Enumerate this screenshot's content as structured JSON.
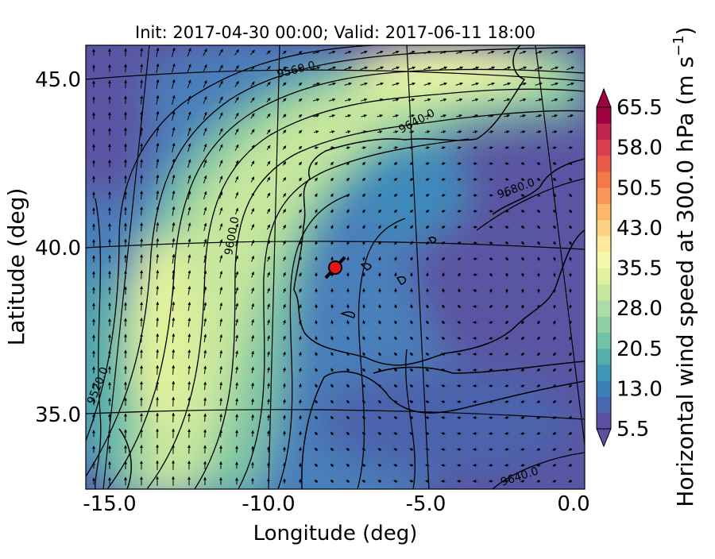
{
  "title": "Init: 2017-04-30 00:00; Valid: 2017-06-11 18:00",
  "map": {
    "xlabel": "Longitude (deg)",
    "ylabel": "Latitude (deg)",
    "x_ticks": [
      "-15.0",
      "-10.0",
      "-5.0",
      "0.0"
    ],
    "y_ticks": [
      "45.0",
      "40.0",
      "35.0"
    ],
    "contour_labels": [
      "9560.0",
      "9640.0",
      "9680.0",
      "9600.0",
      "9520.0",
      "9640.0"
    ],
    "marker_color": "#e8141c"
  },
  "colorbar": {
    "label": "Horizontal wind speed at 300.0 hPa (m s",
    "label_sup": "−1",
    "label_end": ")",
    "ticks": [
      "65.5",
      "58.0",
      "50.5",
      "43.0",
      "35.5",
      "28.0",
      "20.5",
      "13.0",
      "5.5"
    ],
    "colors": [
      "#5e4fa2",
      "#4a68b0",
      "#3a80b9",
      "#3f97b7",
      "#54aead",
      "#6fc3a6",
      "#8ed0a4",
      "#abdda4",
      "#c6e89e",
      "#e0f29a",
      "#f5f9b0",
      "#fee99a",
      "#fed283",
      "#fdb768",
      "#f99858",
      "#f47949",
      "#e85b4a",
      "#d73f4f",
      "#be254f",
      "#9e0142"
    ]
  }
}
